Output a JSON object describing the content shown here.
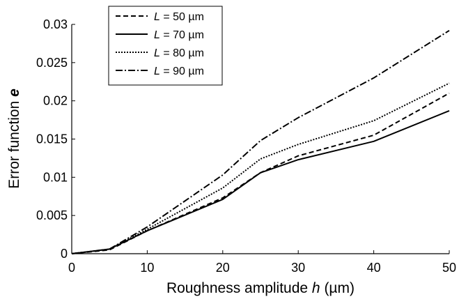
{
  "chart_data": {
    "type": "line",
    "title": "",
    "xlabel": {
      "prefix": "Roughness amplitude ",
      "var": "h",
      "suffix": " (µm)"
    },
    "ylabel": {
      "prefix": "Error function ",
      "var": "e"
    },
    "xlim": [
      0,
      50
    ],
    "ylim": [
      0,
      0.03
    ],
    "x_ticks": [
      0,
      10,
      20,
      30,
      40,
      50
    ],
    "y_ticks": [
      0,
      0.005,
      0.01,
      0.015,
      0.02,
      0.025,
      0.03
    ],
    "x_tick_labels": [
      "0",
      "10",
      "20",
      "30",
      "40",
      "50"
    ],
    "y_tick_labels": [
      "0",
      "0.005",
      "0.01",
      "0.015",
      "0.02",
      "0.025",
      "0.03"
    ],
    "grid": false,
    "legend_position": "top-left",
    "x": [
      0,
      5,
      10,
      20,
      25,
      30,
      40,
      50
    ],
    "series": [
      {
        "name": "50 µm",
        "legend_var": "L",
        "style": "dashed",
        "values": [
          0,
          0.0005,
          0.003,
          0.0073,
          0.0106,
          0.0128,
          0.0155,
          0.021
        ]
      },
      {
        "name": "70 µm",
        "legend_var": "L",
        "style": "solid",
        "values": [
          0,
          0.0006,
          0.003,
          0.0071,
          0.0106,
          0.0123,
          0.0147,
          0.0187
        ]
      },
      {
        "name": "80 µm",
        "legend_var": "L",
        "style": "dotted",
        "values": [
          0,
          0.0006,
          0.0032,
          0.0086,
          0.0124,
          0.0143,
          0.0174,
          0.0223
        ]
      },
      {
        "name": "90 µm",
        "legend_var": "L",
        "style": "dashdot",
        "values": [
          0,
          0.0006,
          0.0035,
          0.0103,
          0.0148,
          0.0178,
          0.023,
          0.0292
        ]
      }
    ]
  }
}
